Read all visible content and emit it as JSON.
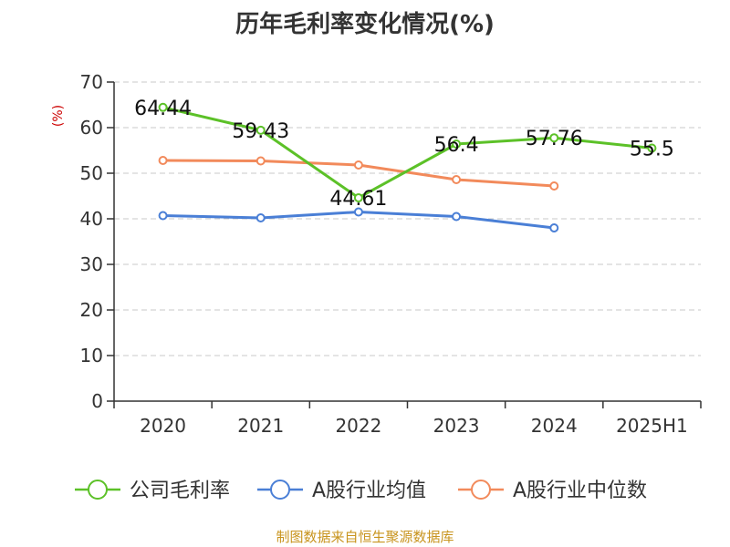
{
  "chart_data": {
    "type": "line",
    "title": "历年毛利率变化情况(%)",
    "ylabel": "(%)",
    "xlabel": "",
    "categories": [
      "2020",
      "2021",
      "2022",
      "2023",
      "2024",
      "2025H1"
    ],
    "ylim": [
      0,
      70
    ],
    "yticks": [
      0,
      10,
      20,
      30,
      40,
      50,
      60,
      70
    ],
    "grid": true,
    "legend_position": "bottom",
    "series": [
      {
        "name": "公司毛利率",
        "color": "#5cc128",
        "values": [
          64.44,
          59.43,
          44.61,
          56.4,
          57.76,
          55.5
        ],
        "labels": [
          "64.44",
          "59.43",
          "44.61",
          "56.4",
          "57.76",
          "55.5"
        ]
      },
      {
        "name": "A股行业均值",
        "color": "#4a7fd6",
        "values": [
          40.7,
          40.2,
          41.5,
          40.5,
          38.0,
          null
        ]
      },
      {
        "name": "A股行业中位数",
        "color": "#f28a5b",
        "values": [
          52.8,
          52.7,
          51.8,
          48.6,
          47.2,
          null
        ]
      }
    ]
  },
  "footer": {
    "source": "制图数据来自恒生聚源数据库"
  }
}
